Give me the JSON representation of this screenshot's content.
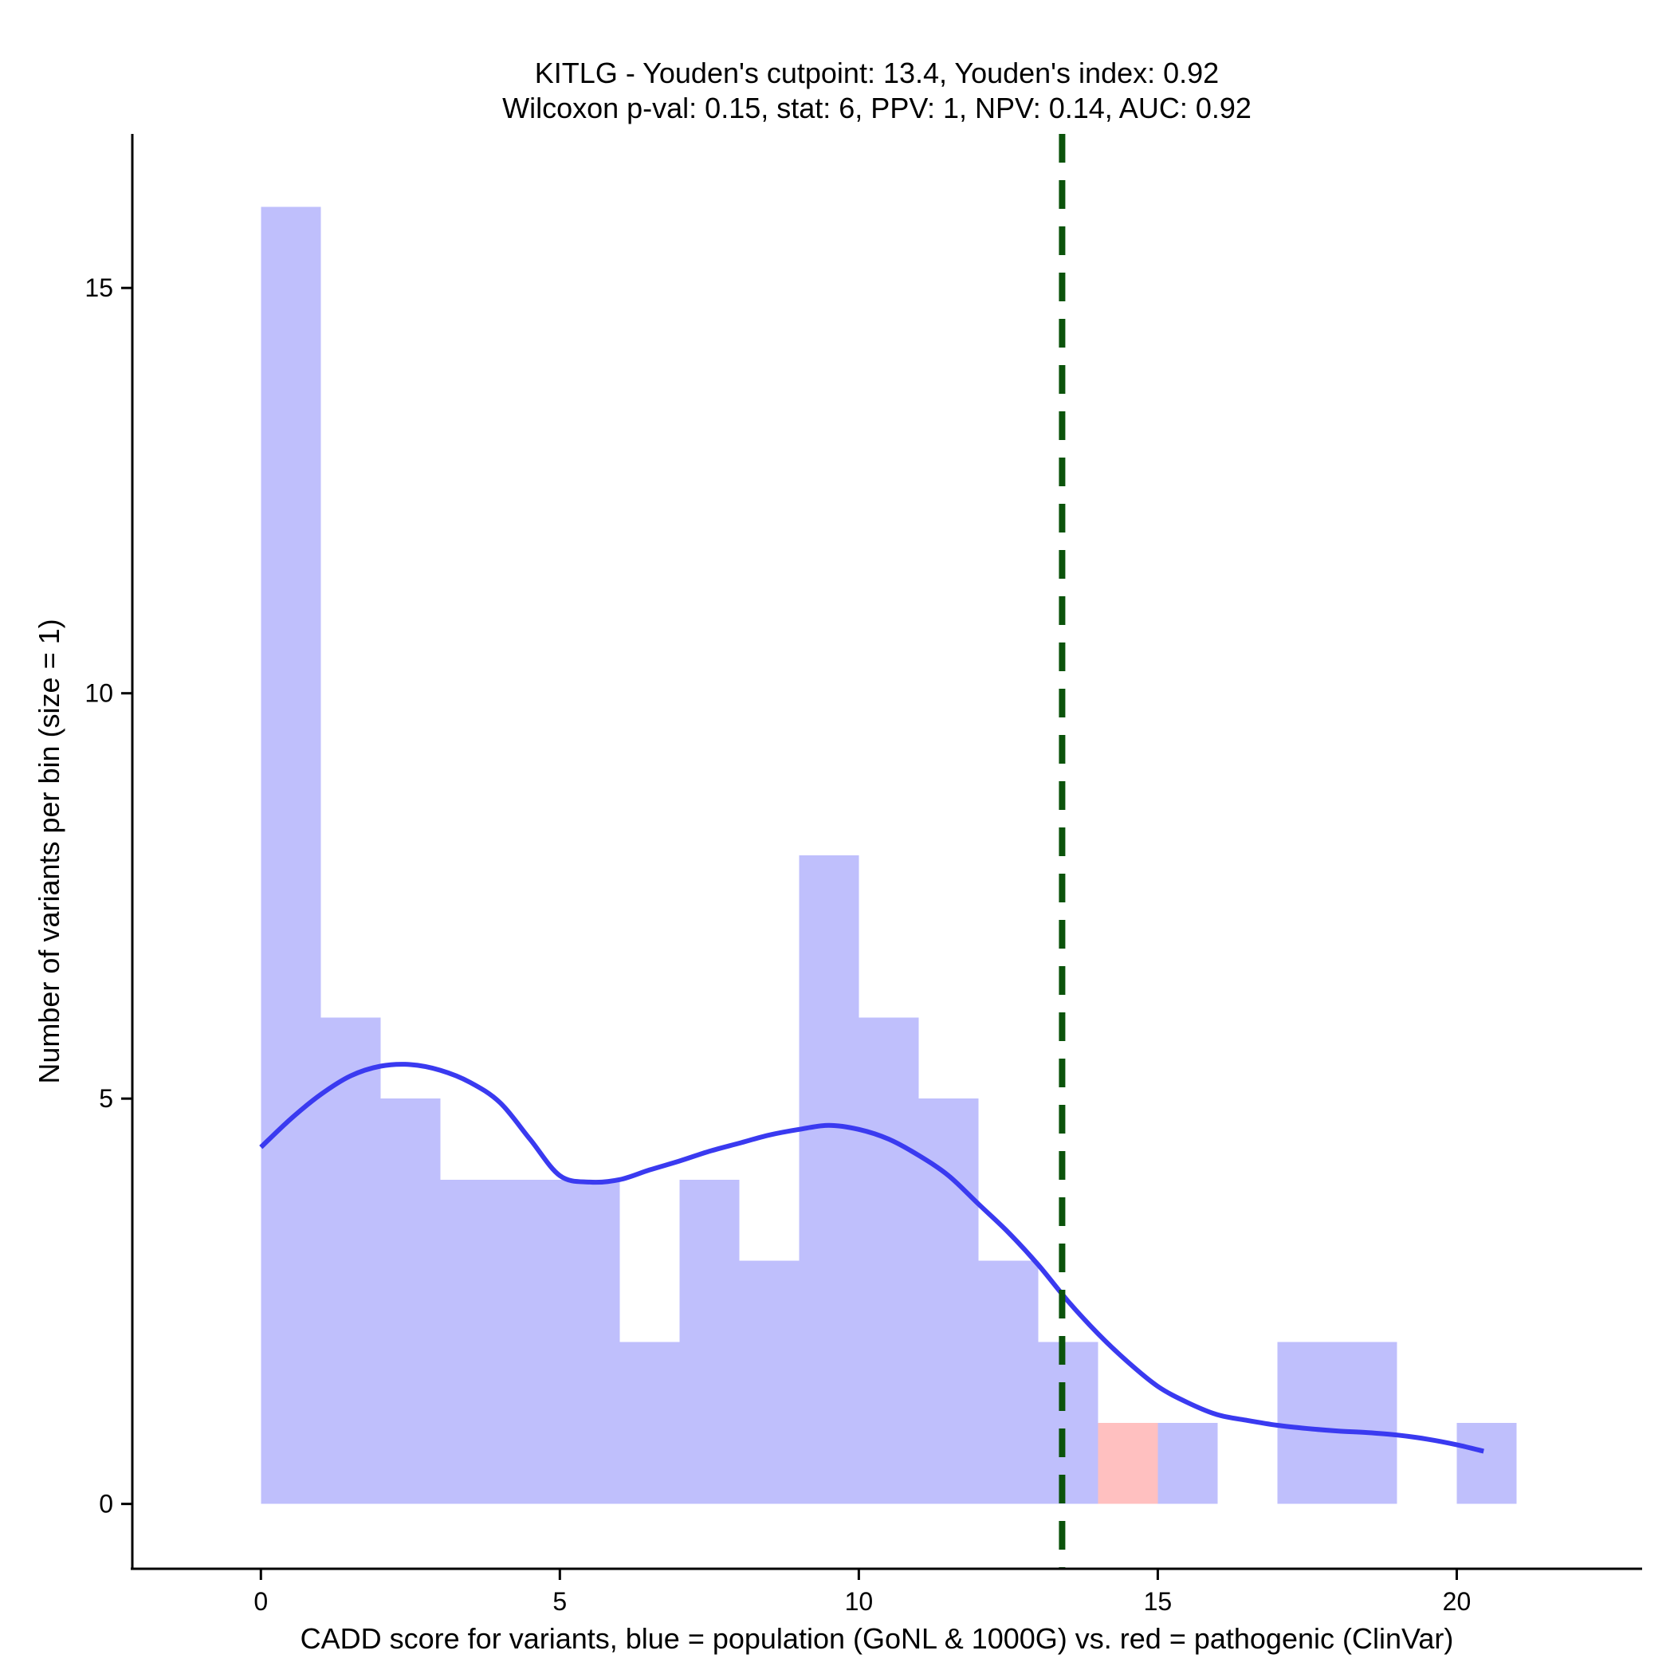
{
  "chart_data": {
    "type": "histogram",
    "title_line1": "KITLG - Youden's cutpoint: 13.4, Youden's index: 0.92",
    "title_line2": "Wilcoxon p-val: 0.15, stat: 6, PPV: 1, NPV: 0.14, AUC: 0.92",
    "xlabel": "CADD score for variants, blue = population (GoNL & 1000G) vs. red = pathogenic (ClinVar)",
    "ylabel": "Number of variants per bin (size = 1)",
    "xlim": [
      -2.15,
      23.1
    ],
    "ylim": [
      -0.8,
      16.9
    ],
    "xticks": [
      0,
      5,
      10,
      15,
      20
    ],
    "xtick_labels": [
      "0",
      "5",
      "10",
      "15",
      "20"
    ],
    "yticks": [
      0,
      5,
      10,
      15
    ],
    "ytick_labels": [
      "0",
      "5",
      "10",
      "15"
    ],
    "bin_size": 1,
    "colors": {
      "population": "#BFBFFC",
      "pathogenic": "#FFC0C0",
      "density": "#3A3AF0",
      "cutpoint": "#0B530B"
    },
    "series": [
      {
        "name": "population (GoNL & 1000G)",
        "bins": [
          {
            "x0": 0,
            "x1": 1,
            "count": 16
          },
          {
            "x0": 1,
            "x1": 2,
            "count": 6
          },
          {
            "x0": 2,
            "x1": 3,
            "count": 5
          },
          {
            "x0": 3,
            "x1": 4,
            "count": 4
          },
          {
            "x0": 4,
            "x1": 5,
            "count": 4
          },
          {
            "x0": 5,
            "x1": 6,
            "count": 4
          },
          {
            "x0": 6,
            "x1": 7,
            "count": 2
          },
          {
            "x0": 7,
            "x1": 8,
            "count": 4
          },
          {
            "x0": 8,
            "x1": 9,
            "count": 3
          },
          {
            "x0": 9,
            "x1": 10,
            "count": 8
          },
          {
            "x0": 10,
            "x1": 11,
            "count": 6
          },
          {
            "x0": 11,
            "x1": 12,
            "count": 5
          },
          {
            "x0": 12,
            "x1": 13,
            "count": 3
          },
          {
            "x0": 13,
            "x1": 14,
            "count": 2
          },
          {
            "x0": 15,
            "x1": 16,
            "count": 1
          },
          {
            "x0": 17,
            "x1": 18,
            "count": 2
          },
          {
            "x0": 18,
            "x1": 19,
            "count": 2
          },
          {
            "x0": 20,
            "x1": 21,
            "count": 1
          }
        ]
      },
      {
        "name": "pathogenic (ClinVar)",
        "bins": [
          {
            "x0": 14,
            "x1": 15,
            "count": 1
          }
        ]
      }
    ],
    "density_curve": {
      "name": "population density (scaled)",
      "points": [
        [
          0,
          4.4
        ],
        [
          0.5,
          4.75
        ],
        [
          1,
          5.05
        ],
        [
          1.5,
          5.28
        ],
        [
          2,
          5.4
        ],
        [
          2.5,
          5.42
        ],
        [
          3,
          5.35
        ],
        [
          3.5,
          5.2
        ],
        [
          4,
          4.95
        ],
        [
          4.5,
          4.5
        ],
        [
          5,
          4.05
        ],
        [
          5.5,
          3.97
        ],
        [
          6,
          4.0
        ],
        [
          6.5,
          4.12
        ],
        [
          7,
          4.23
        ],
        [
          7.5,
          4.35
        ],
        [
          8,
          4.45
        ],
        [
          8.5,
          4.55
        ],
        [
          9,
          4.62
        ],
        [
          9.5,
          4.67
        ],
        [
          10,
          4.62
        ],
        [
          10.5,
          4.5
        ],
        [
          11,
          4.3
        ],
        [
          11.5,
          4.05
        ],
        [
          12,
          3.7
        ],
        [
          12.5,
          3.35
        ],
        [
          13,
          2.95
        ],
        [
          13.5,
          2.5
        ],
        [
          14,
          2.1
        ],
        [
          14.5,
          1.75
        ],
        [
          15,
          1.45
        ],
        [
          15.5,
          1.25
        ],
        [
          16,
          1.1
        ],
        [
          16.5,
          1.03
        ],
        [
          17,
          0.97
        ],
        [
          17.5,
          0.93
        ],
        [
          18,
          0.9
        ],
        [
          18.5,
          0.88
        ],
        [
          19,
          0.85
        ],
        [
          19.5,
          0.8
        ],
        [
          20,
          0.73
        ],
        [
          20.45,
          0.65
        ]
      ]
    },
    "cutpoint": {
      "label": "Youden's cutpoint",
      "x": 13.4
    }
  }
}
